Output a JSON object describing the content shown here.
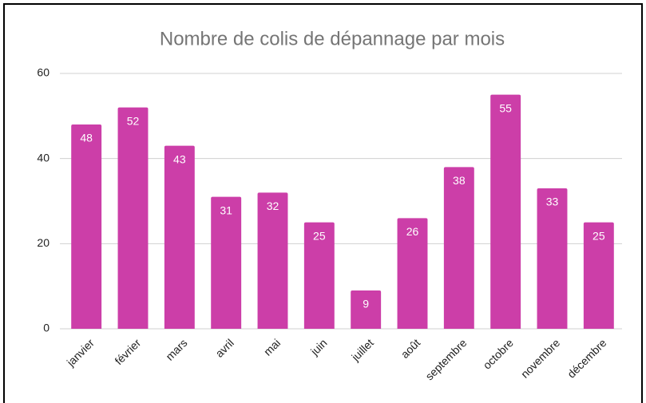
{
  "chart_data": {
    "type": "bar",
    "title": "Nombre de colis de dépannage par mois",
    "categories": [
      "janvier",
      "février",
      "mars",
      "avril",
      "mai",
      "juin",
      "juillet",
      "août",
      "septembre",
      "octobre",
      "novembre",
      "décembre"
    ],
    "values": [
      48,
      52,
      43,
      31,
      32,
      25,
      9,
      26,
      38,
      55,
      33,
      25
    ],
    "color": "#cc3ea8",
    "ylim": [
      0,
      60
    ],
    "yticks": [
      0,
      20,
      40,
      60
    ],
    "grid": true
  }
}
